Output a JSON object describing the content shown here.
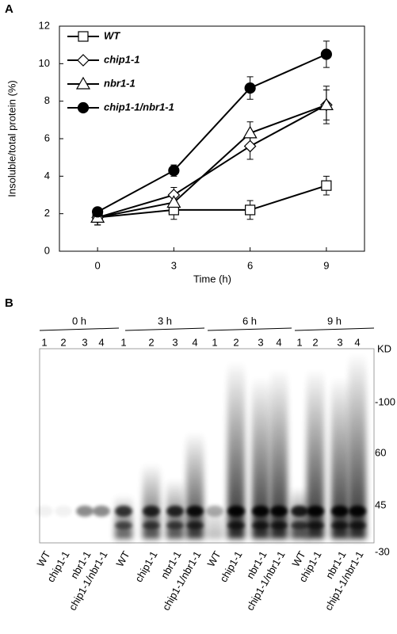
{
  "chart_data": {
    "type": "line",
    "panel_label": "A",
    "xlabel": "Time (h)",
    "ylabel": "Insoluble/total protein (%)",
    "x": [
      0,
      3,
      6,
      9
    ],
    "xlim": [
      -1.5,
      10.5
    ],
    "xticks": [
      0,
      3,
      6,
      9
    ],
    "ylim": [
      0,
      12
    ],
    "yticks": [
      0,
      2,
      4,
      6,
      8,
      10,
      12
    ],
    "grid": false,
    "legend": "upper left",
    "series": [
      {
        "name": "WT",
        "color": "#000000",
        "marker": "square",
        "filled": false,
        "values": [
          1.8,
          2.2,
          2.2,
          3.5
        ],
        "errors": [
          0.4,
          0.5,
          0.5,
          0.5
        ]
      },
      {
        "name": "chip1-1",
        "color": "#000000",
        "marker": "diamond",
        "filled": false,
        "values": [
          1.8,
          3.0,
          5.6,
          7.8
        ],
        "errors": [
          0.4,
          0.4,
          0.7,
          0.8
        ]
      },
      {
        "name": "nbr1-1",
        "color": "#000000",
        "marker": "triangle",
        "filled": false,
        "values": [
          1.8,
          2.6,
          6.3,
          7.8
        ],
        "errors": [
          0.4,
          0.5,
          0.6,
          1.0
        ]
      },
      {
        "name": "chip1-1/nbr1-1",
        "color": "#000000",
        "marker": "circle",
        "filled": true,
        "values": [
          2.1,
          4.3,
          8.7,
          10.5
        ],
        "errors": [
          0.2,
          0.3,
          0.6,
          0.7
        ]
      }
    ]
  },
  "panel_b": {
    "panel_label": "B",
    "groups": [
      {
        "label": "0 h",
        "lanes": [
          "1",
          "2",
          "3",
          "4"
        ]
      },
      {
        "label": "3 h",
        "lanes": [
          "1",
          "2",
          "3",
          "4"
        ]
      },
      {
        "label": "6 h",
        "lanes": [
          "1",
          "2",
          "3",
          "4"
        ]
      },
      {
        "label": "9 h",
        "lanes": [
          "1",
          "2",
          "3",
          "4"
        ]
      }
    ],
    "samples": [
      "WT",
      "chip1-1",
      "nbr1-1",
      "chip1-1/nbr1-1"
    ],
    "size_unit": "KD",
    "size_markers": [
      "-100",
      "60",
      "45",
      "-30"
    ]
  }
}
